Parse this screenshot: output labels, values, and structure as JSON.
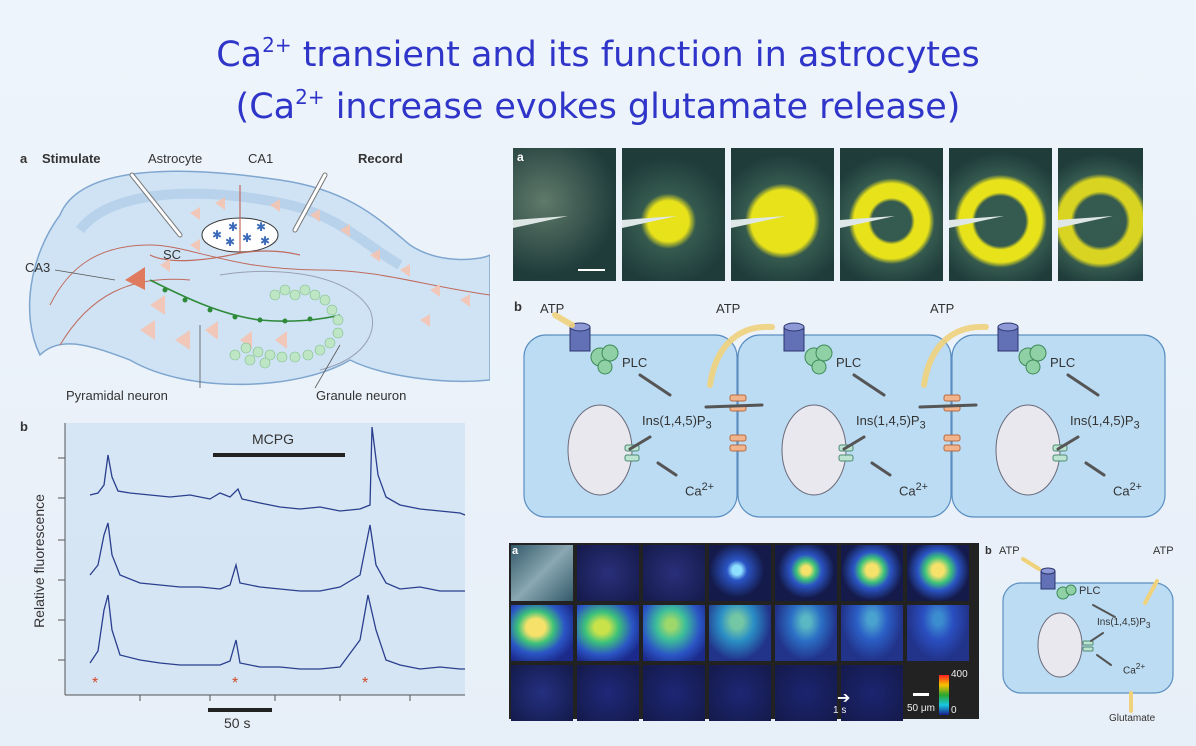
{
  "title": {
    "line1_prefix": "Ca",
    "line1_sup": "2+",
    "line1_rest": " transient and its function in astrocytes",
    "line2_prefix": "(Ca",
    "line2_sup": "2+",
    "line2_rest": " increase evokes glutamate release)"
  },
  "hippocampus": {
    "panel_letter": "a",
    "stimulate": "Stimulate",
    "astrocyte": "Astrocyte",
    "ca1": "CA1",
    "record": "Record",
    "sc": "SC",
    "ca3": "CA3",
    "pyramidal": "Pyramidal neuron",
    "granule": "Granule neuron"
  },
  "traces": {
    "panel_letter": "b",
    "drug": "MCPG",
    "ylabel": "Relative fluorescence",
    "scalebar": "50 s",
    "marker": "*"
  },
  "wave": {
    "panel_letter": "a",
    "frame_count": 6
  },
  "pathway": {
    "panel_letter": "b",
    "atp": "ATP",
    "plc": "PLC",
    "ip3_main": "Ins(1,4,5)P",
    "ip3_sub": "3",
    "ca_main": "Ca",
    "ca_sup": "2+"
  },
  "imaging": {
    "panel_letter": "a",
    "time_bar": "1 s",
    "scale_bar": "50 μm",
    "cbar_max": "400",
    "cbar_min": "0"
  },
  "single_cell": {
    "panel_letter": "b",
    "atp_in": "ATP",
    "atp_out": "ATP",
    "plc": "PLC",
    "ip3_main": "Ins(1,4,5)P",
    "ip3_sub": "3",
    "ca_main": "Ca",
    "ca_sup": "2+",
    "glutamate": "Glutamate"
  },
  "colors": {
    "title": "#2f35c8",
    "trace": "#2a3f8e",
    "cell_fill": "#bcdcf3",
    "wave_yellow": "#e8e21a"
  }
}
